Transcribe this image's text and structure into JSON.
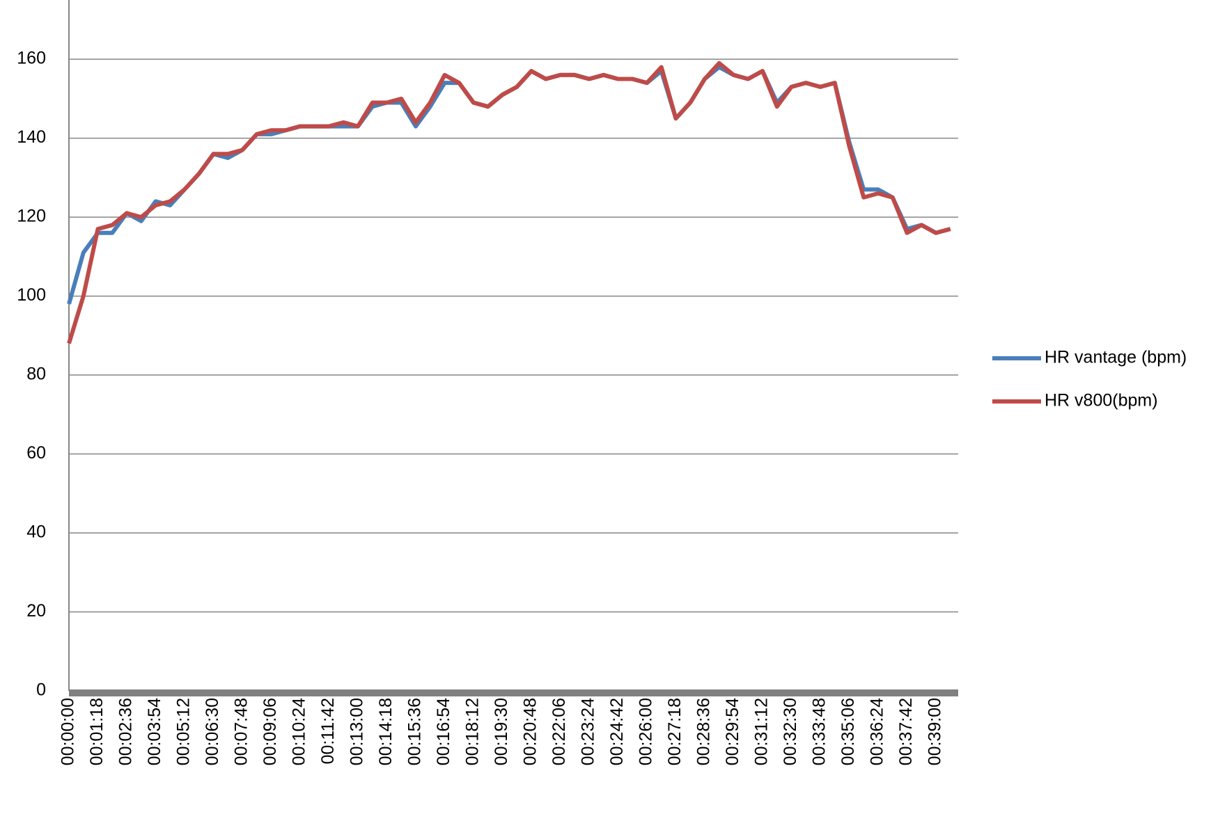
{
  "chart_data": {
    "type": "line",
    "categories": [
      "00:00:00",
      null,
      "00:01:18",
      null,
      "00:02:36",
      null,
      "00:03:54",
      null,
      "00:05:12",
      null,
      "00:06:30",
      null,
      "00:07:48",
      null,
      "00:09:06",
      null,
      "00:10:24",
      null,
      "00:11:42",
      null,
      "00:13:00",
      null,
      "00:14:18",
      null,
      "00:15:36",
      null,
      "00:16:54",
      null,
      "00:18:12",
      null,
      "00:19:30",
      null,
      "00:20:48",
      null,
      "00:22:06",
      null,
      "00:23:24",
      null,
      "00:24:42",
      null,
      "00:26:00",
      null,
      "00:27:18",
      null,
      "00:28:36",
      null,
      "00:29:54",
      null,
      "00:31:12",
      null,
      "00:32:30",
      null,
      "00:33:48",
      null,
      "00:35:06",
      null,
      "00:36:24",
      null,
      "00:37:42",
      null,
      "00:39:00",
      null
    ],
    "series": [
      {
        "name": "HR vantage (bpm)",
        "color": "#4a7ebb",
        "values": [
          98,
          111,
          116,
          116,
          121,
          119,
          124,
          123,
          127,
          131,
          136,
          135,
          137,
          141,
          141,
          142,
          143,
          143,
          143,
          143,
          143,
          148,
          149,
          149,
          143,
          148,
          154,
          154,
          149,
          148,
          151,
          153,
          157,
          155,
          156,
          156,
          155,
          156,
          155,
          155,
          154,
          157,
          145,
          149,
          155,
          158,
          156,
          155,
          157,
          149,
          153,
          154,
          153,
          154,
          139,
          127,
          127,
          125,
          117,
          118,
          116,
          117
        ]
      },
      {
        "name": "HR v800(bpm)",
        "color": "#be4b48",
        "values": [
          88,
          100,
          117,
          118,
          121,
          120,
          123,
          124,
          127,
          131,
          136,
          136,
          137,
          141,
          142,
          142,
          143,
          143,
          143,
          144,
          143,
          149,
          149,
          150,
          144,
          149,
          156,
          154,
          149,
          148,
          151,
          153,
          157,
          155,
          156,
          156,
          155,
          156,
          155,
          155,
          154,
          158,
          145,
          149,
          155,
          159,
          156,
          155,
          157,
          148,
          153,
          154,
          153,
          154,
          138,
          125,
          126,
          125,
          116,
          118,
          116,
          117
        ]
      }
    ],
    "ylim": [
      0,
      175
    ],
    "yticks": [
      0,
      20,
      40,
      60,
      80,
      100,
      120,
      140,
      160
    ],
    "grid": true,
    "legend": "right"
  }
}
